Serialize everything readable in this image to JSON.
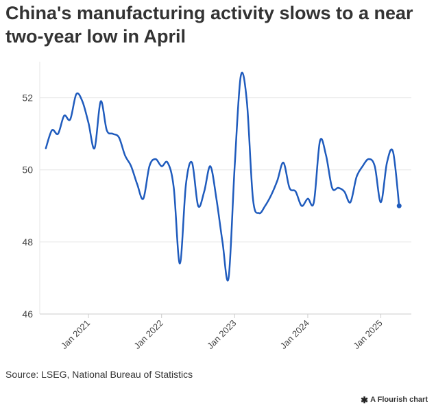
{
  "title": "China's manufacturing activity slows to a near two-year low in April",
  "source": "Source: LSEG, National Bureau of Statistics",
  "credit": {
    "label": "A Flourish chart",
    "icon": "flourish-logo-icon"
  },
  "colors": {
    "line": "#1f5bbd",
    "gridline": "#e6e6e6",
    "axis": "#cccccc",
    "text": "#333333"
  },
  "chart_data": {
    "type": "line",
    "title": "China's manufacturing activity slows to a near two-year low in April",
    "xlabel": "",
    "ylabel": "",
    "ylim": [
      46,
      53
    ],
    "yticks": [
      46,
      48,
      50,
      52
    ],
    "grid": "horizontal",
    "xtick_labels": [
      "Jan 2021",
      "Jan 2022",
      "Jan 2023",
      "Jan 2024",
      "Jan 2025"
    ],
    "xtick_dates": [
      "2021-01",
      "2022-01",
      "2023-01",
      "2024-01",
      "2025-01"
    ],
    "x_range": [
      "2020-05",
      "2025-06"
    ],
    "endpoint_marker": true,
    "series": [
      {
        "x": [
          "2020-06",
          "2020-07",
          "2020-08",
          "2020-09",
          "2020-10",
          "2020-11",
          "2020-12",
          "2021-01",
          "2021-02",
          "2021-03",
          "2021-04",
          "2021-05",
          "2021-06",
          "2021-07",
          "2021-08",
          "2021-09",
          "2021-10",
          "2021-11",
          "2021-12",
          "2022-01",
          "2022-02",
          "2022-03",
          "2022-04",
          "2022-05",
          "2022-06",
          "2022-07",
          "2022-08",
          "2022-09",
          "2022-10",
          "2022-11",
          "2022-12",
          "2023-01",
          "2023-02",
          "2023-03",
          "2023-04",
          "2023-05",
          "2023-06",
          "2023-07",
          "2023-08",
          "2023-09",
          "2023-10",
          "2023-11",
          "2023-12",
          "2024-01",
          "2024-02",
          "2024-03",
          "2024-04",
          "2024-05",
          "2024-06",
          "2024-07",
          "2024-08",
          "2024-09",
          "2024-10",
          "2024-11",
          "2024-12",
          "2025-01",
          "2025-02",
          "2025-03",
          "2025-04"
        ],
        "values": [
          50.6,
          51.1,
          51.0,
          51.5,
          51.4,
          52.1,
          51.9,
          51.3,
          50.6,
          51.9,
          51.1,
          51.0,
          50.9,
          50.4,
          50.1,
          49.6,
          49.2,
          50.1,
          50.3,
          50.1,
          50.2,
          49.5,
          47.4,
          49.6,
          50.2,
          49.0,
          49.4,
          50.1,
          49.2,
          48.0,
          47.0,
          50.1,
          52.6,
          51.9,
          49.2,
          48.8,
          49.0,
          49.3,
          49.7,
          50.2,
          49.5,
          49.4,
          49.0,
          49.2,
          49.1,
          50.8,
          50.4,
          49.5,
          49.5,
          49.4,
          49.1,
          49.8,
          50.1,
          50.3,
          50.1,
          49.1,
          50.2,
          50.5,
          49.0
        ]
      }
    ]
  }
}
